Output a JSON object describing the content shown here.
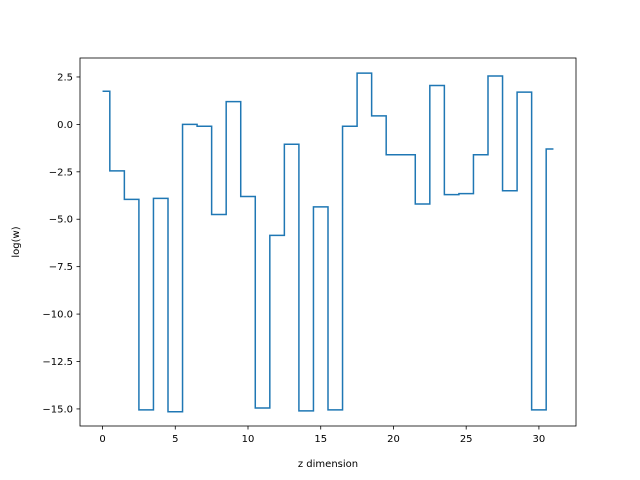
{
  "chart_data": {
    "type": "line",
    "drawstyle": "steps-mid",
    "title": "",
    "xlabel": "z dimension",
    "ylabel": "log(w)",
    "xlim": [
      -1.55,
      32.55
    ],
    "ylim": [
      -15.9,
      3.5
    ],
    "xticks": [
      0,
      5,
      10,
      15,
      20,
      25,
      30
    ],
    "xtick_labels": [
      "0",
      "5",
      "10",
      "15",
      "20",
      "25",
      "30"
    ],
    "yticks": [
      2.5,
      0.0,
      -2.5,
      -5.0,
      -7.5,
      -10.0,
      -12.5,
      -15.0
    ],
    "ytick_labels": [
      "2.5",
      "0.0",
      "−2.5",
      "−5.0",
      "−7.5",
      "−10.0",
      "−12.5",
      "−15.0"
    ],
    "grid": false,
    "series": [
      {
        "color": "#1f77b4",
        "x": [
          0,
          1,
          2,
          3,
          4,
          5,
          6,
          7,
          8,
          9,
          10,
          11,
          12,
          13,
          14,
          15,
          16,
          17,
          18,
          19,
          20,
          21,
          22,
          23,
          24,
          25,
          26,
          27,
          28,
          29,
          30,
          31
        ],
        "values": [
          1.75,
          -2.45,
          -3.95,
          -15.05,
          -3.9,
          -15.15,
          0.0,
          -0.1,
          -4.75,
          1.2,
          -3.8,
          -14.95,
          -5.85,
          -1.05,
          -15.1,
          -4.35,
          -15.05,
          -0.1,
          2.7,
          0.45,
          -1.6,
          -1.6,
          -4.2,
          2.05,
          -3.7,
          -3.65,
          -1.6,
          2.55,
          -3.5,
          1.7,
          -15.05,
          -1.3
        ]
      }
    ]
  }
}
